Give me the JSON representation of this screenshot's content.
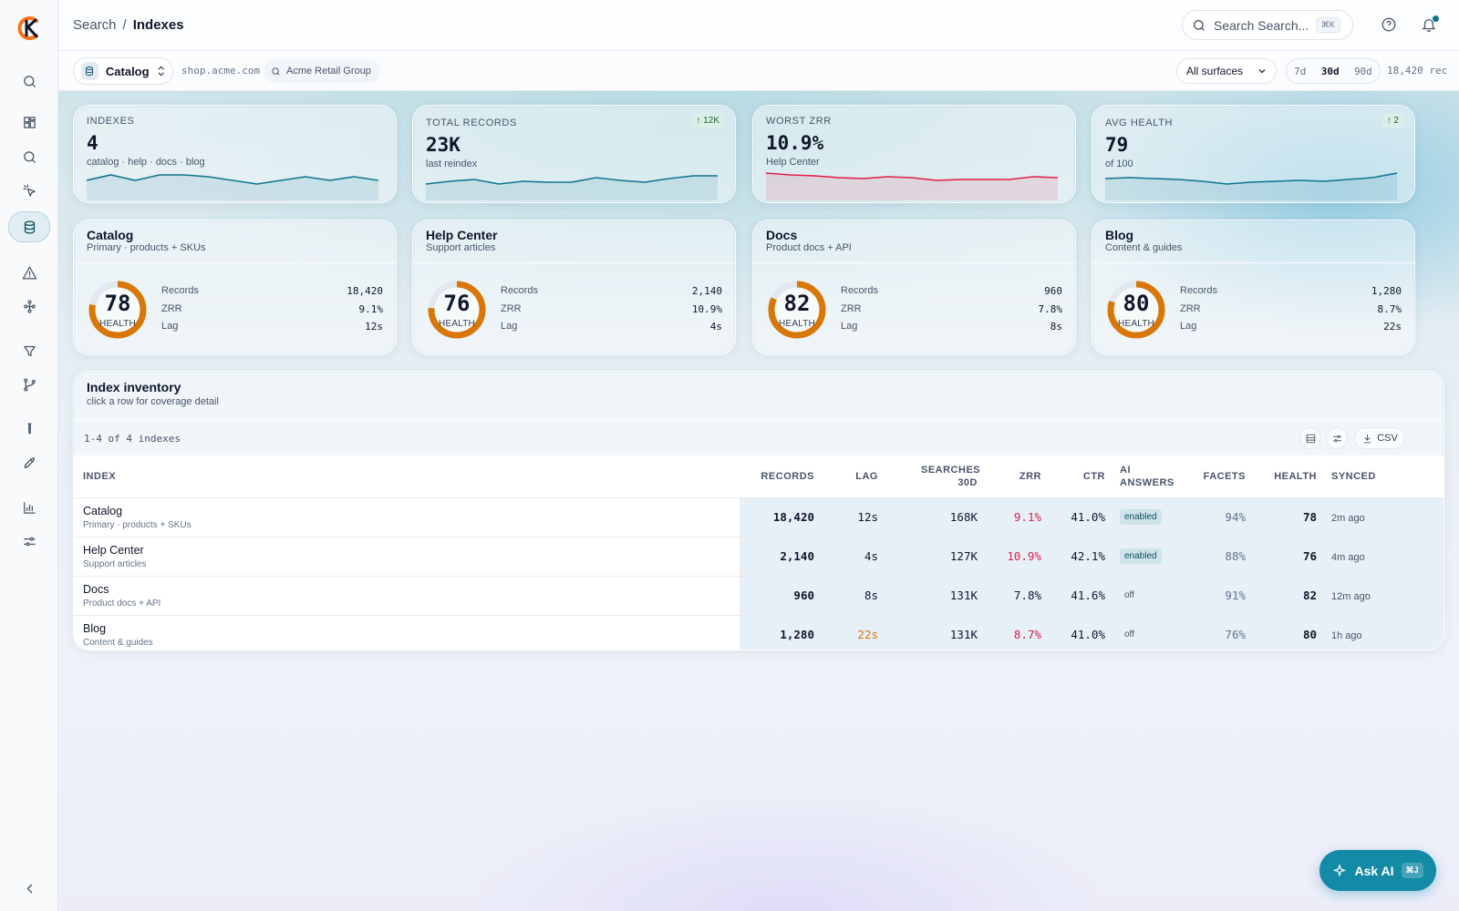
{
  "breadcrumb": {
    "parent": "Search",
    "separator": "/",
    "current": "Indexes"
  },
  "search": {
    "placeholder": "Search Search...",
    "shortcut": "⌘K"
  },
  "filters": {
    "index_select": "Catalog",
    "domain": "shop.acme.com",
    "org": "Acme Retail Group",
    "surface": "All surfaces",
    "ranges": [
      "7d",
      "30d",
      "90d"
    ],
    "active_range": "30d",
    "record_count": "18,420 rec"
  },
  "kpis": [
    {
      "label": "INDEXES",
      "value": "4",
      "sub": "catalog · help · docs · blog",
      "delta": "",
      "spark": [
        14,
        8,
        14,
        8,
        8,
        10,
        14,
        18,
        14,
        10,
        14,
        10,
        14
      ],
      "color": "#0e7490"
    },
    {
      "label": "TOTAL RECORDS",
      "value": "23K",
      "sub": "last reindex",
      "delta": "↑ 12K",
      "spark": [
        18,
        15,
        13,
        18,
        15,
        16,
        16,
        11,
        14,
        16,
        12,
        9,
        9
      ],
      "color": "#0e7490"
    },
    {
      "label": "WORST ZRR",
      "value": "10.9%",
      "sub": "Help Center",
      "delta": "",
      "spark": [
        6,
        8,
        9,
        11,
        12,
        10,
        11,
        14,
        13,
        13,
        13,
        10,
        11
      ],
      "color": "#e11d48"
    },
    {
      "label": "AVG HEALTH",
      "value": "79",
      "sub": "of 100",
      "delta": "↑ 2",
      "spark": [
        12,
        11,
        12,
        13,
        15,
        18,
        16,
        15,
        14,
        15,
        13,
        11,
        6
      ],
      "color": "#0e7490"
    }
  ],
  "indexes": [
    {
      "name": "Catalog",
      "desc": "Primary · products + SKUs",
      "health": 78,
      "health_label": "HEALTH",
      "records": "18,420",
      "zrr": "9.1%",
      "lag": "12s"
    },
    {
      "name": "Help Center",
      "desc": "Support articles",
      "health": 76,
      "health_label": "HEALTH",
      "records": "2,140",
      "zrr": "10.9%",
      "lag": "4s"
    },
    {
      "name": "Docs",
      "desc": "Product docs + API",
      "health": 82,
      "health_label": "HEALTH",
      "records": "960",
      "zrr": "7.8%",
      "lag": "8s"
    },
    {
      "name": "Blog",
      "desc": "Content & guides",
      "health": 80,
      "health_label": "HEALTH",
      "records": "1,280",
      "zrr": "8.7%",
      "lag": "22s"
    }
  ],
  "stat_labels": {
    "records": "Records",
    "zrr": "ZRR",
    "lag": "Lag"
  },
  "inventory": {
    "title": "Index inventory",
    "subtitle": "click a row for coverage detail",
    "count": "1-4 of 4 indexes",
    "csv": "CSV",
    "columns": [
      "INDEX",
      "RECORDS",
      "LAG",
      "SEARCHES 30D",
      "ZRR",
      "CTR",
      "AI ANSWERS",
      "FACETS",
      "HEALTH",
      "SYNCED"
    ],
    "rows": [
      {
        "name": "Catalog",
        "desc": "Primary · products + SKUs",
        "records": "18,420",
        "lag": "12s",
        "searches": "168K",
        "zrr": "9.1%",
        "ctr": "41.0%",
        "ai": "enabled",
        "facets": "94%",
        "health": "78",
        "synced": "2m ago"
      },
      {
        "name": "Help Center",
        "desc": "Support articles",
        "records": "2,140",
        "lag": "4s",
        "searches": "127K",
        "zrr": "10.9%",
        "ctr": "42.1%",
        "ai": "enabled",
        "facets": "88%",
        "health": "76",
        "synced": "4m ago"
      },
      {
        "name": "Docs",
        "desc": "Product docs + API",
        "records": "960",
        "lag": "8s",
        "searches": "131K",
        "zrr": "7.8%",
        "ctr": "41.6%",
        "ai": "off",
        "facets": "91%",
        "health": "82",
        "synced": "12m ago"
      },
      {
        "name": "Blog",
        "desc": "Content & guides",
        "records": "1,280",
        "lag": "22s",
        "searches": "131K",
        "zrr": "8.7%",
        "ctr": "41.0%",
        "ai": "off",
        "facets": "76%",
        "health": "80",
        "synced": "1h ago"
      }
    ]
  },
  "ask_ai": {
    "label": "Ask AI",
    "shortcut": "⌘J"
  },
  "colors": {
    "accent": "#0e7490",
    "ring": "#d97706",
    "bad": "#e11d48",
    "warn": "#d97706"
  }
}
